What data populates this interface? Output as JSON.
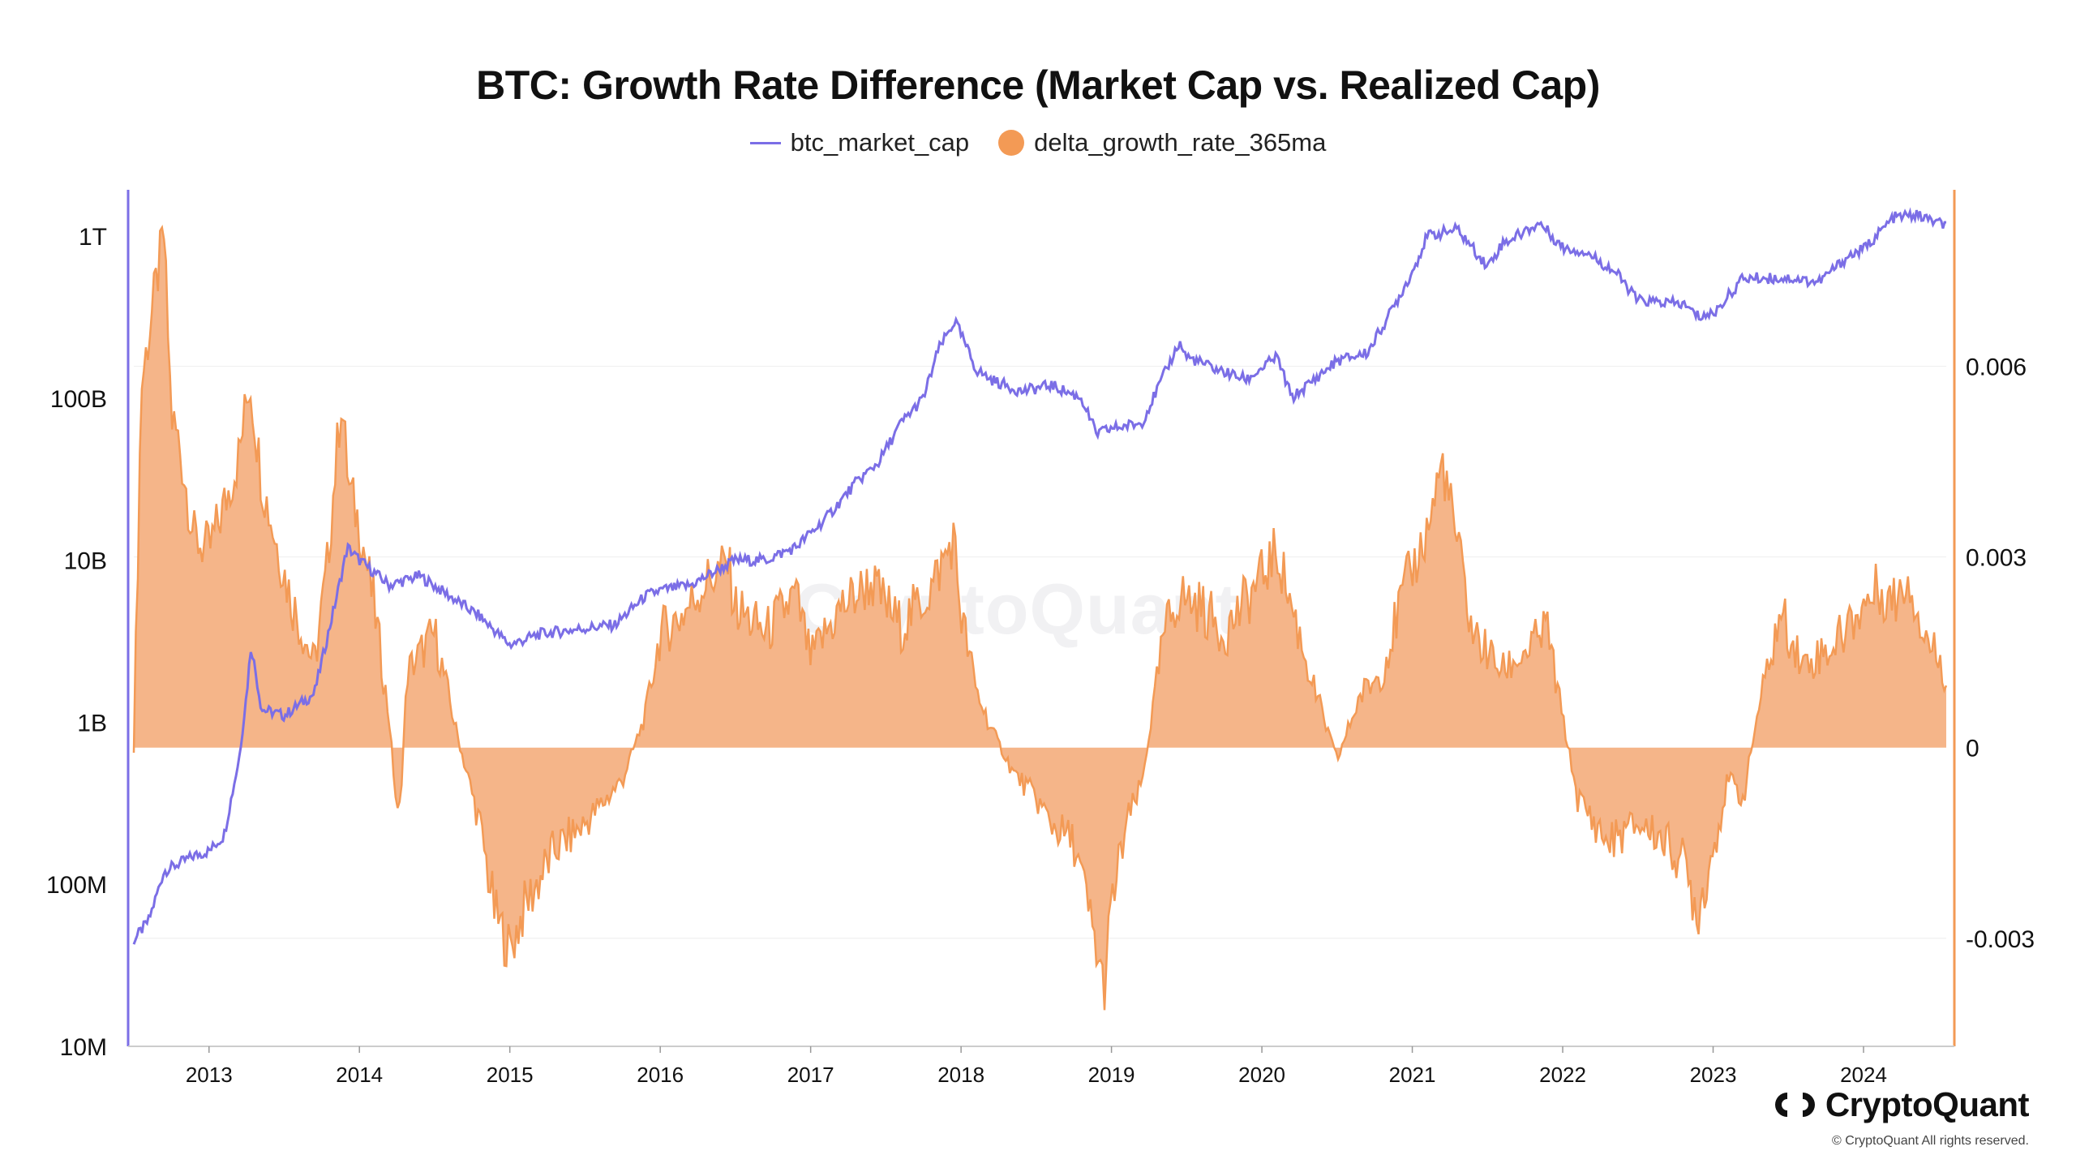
{
  "chart_data": {
    "type": "line+area",
    "title": "BTC: Growth Rate Difference (Market Cap vs. Realized Cap)",
    "legend": [
      "btc_market_cap",
      "delta_growth_rate_365ma"
    ],
    "x_range": [
      2012.5,
      2024.55
    ],
    "x_ticks": [
      "2013",
      "2014",
      "2015",
      "2016",
      "2017",
      "2018",
      "2019",
      "2020",
      "2021",
      "2022",
      "2023",
      "2024"
    ],
    "left_axis": {
      "scale": "log",
      "ticks": [
        {
          "label": "10M",
          "value": 10000000
        },
        {
          "label": "100M",
          "value": 100000000
        },
        {
          "label": "1B",
          "value": 1000000000
        },
        {
          "label": "10B",
          "value": 10000000000
        },
        {
          "label": "100B",
          "value": 100000000000
        },
        {
          "label": "1T",
          "value": 1000000000000
        }
      ],
      "range": [
        10000000,
        1800000000000
      ]
    },
    "right_axis": {
      "scale": "linear",
      "ticks": [
        {
          "label": "-0.003",
          "value": -0.003
        },
        {
          "label": "0",
          "value": 0
        },
        {
          "label": "0.003",
          "value": 0.003
        },
        {
          "label": "0.006",
          "value": 0.006
        }
      ],
      "range": [
        -0.0047,
        0.0087
      ]
    },
    "series": [
      {
        "name": "btc_market_cap",
        "axis": "left",
        "color": "#7b6ee6",
        "x": [
          2012.5,
          2012.6,
          2012.7,
          2012.9,
          2013.0,
          2013.1,
          2013.2,
          2013.25,
          2013.28,
          2013.35,
          2013.5,
          2013.7,
          2013.85,
          2013.92,
          2014.0,
          2014.2,
          2014.4,
          2014.6,
          2014.8,
          2015.0,
          2015.2,
          2015.5,
          2015.7,
          2015.9,
          2016.0,
          2016.2,
          2016.5,
          2016.7,
          2016.9,
          2017.1,
          2017.3,
          2017.45,
          2017.6,
          2017.75,
          2017.85,
          2017.96,
          2018.1,
          2018.2,
          2018.4,
          2018.6,
          2018.8,
          2018.9,
          2019.0,
          2019.2,
          2019.45,
          2019.5,
          2019.7,
          2019.9,
          2020.1,
          2020.2,
          2020.5,
          2020.7,
          2020.85,
          2021.0,
          2021.1,
          2021.3,
          2021.5,
          2021.6,
          2021.85,
          2022.0,
          2022.15,
          2022.35,
          2022.5,
          2022.8,
          2022.9,
          2023.0,
          2023.2,
          2023.5,
          2023.7,
          2023.9,
          2024.0,
          2024.2,
          2024.35,
          2024.5,
          2024.55
        ],
        "values": [
          45000000,
          60000000,
          120000000,
          150000000,
          160000000,
          200000000,
          600000000,
          1500000000,
          3000000000,
          1200000000,
          1100000000,
          1500000000,
          6000000000,
          12000000000,
          10000000000,
          7000000000,
          8000000000,
          6000000000,
          4500000000,
          3000000000,
          3500000000,
          3800000000,
          4000000000,
          6000000000,
          6500000000,
          7000000000,
          10000000000,
          10000000000,
          12000000000,
          18000000000,
          30000000000,
          40000000000,
          70000000000,
          100000000000,
          200000000000,
          300000000000,
          150000000000,
          130000000000,
          110000000000,
          120000000000,
          100000000000,
          60000000000,
          65000000000,
          70000000000,
          220000000000,
          180000000000,
          150000000000,
          130000000000,
          180000000000,
          100000000000,
          170000000000,
          190000000000,
          330000000000,
          600000000000,
          1000000000000,
          1100000000000,
          650000000000,
          900000000000,
          1200000000000,
          850000000000,
          800000000000,
          600000000000,
          400000000000,
          380000000000,
          320000000000,
          330000000000,
          550000000000,
          550000000000,
          520000000000,
          750000000000,
          830000000000,
          1300000000000,
          1350000000000,
          1200000000000,
          1150000000000
        ]
      },
      {
        "name": "delta_growth_rate_365ma",
        "axis": "right",
        "color": "#f39a55",
        "x": [
          2012.5,
          2012.55,
          2012.65,
          2012.7,
          2012.75,
          2012.8,
          2012.9,
          2013.0,
          2013.1,
          2013.2,
          2013.27,
          2013.35,
          2013.45,
          2013.55,
          2013.7,
          2013.78,
          2013.88,
          2013.93,
          2014.0,
          2014.1,
          2014.2,
          2014.26,
          2014.32,
          2014.5,
          2014.65,
          2014.8,
          2014.9,
          2015.0,
          2015.1,
          2015.3,
          2015.5,
          2015.75,
          2015.9,
          2016.0,
          2016.15,
          2016.3,
          2016.45,
          2016.5,
          2016.7,
          2016.9,
          2017.0,
          2017.2,
          2017.4,
          2017.6,
          2017.8,
          2017.95,
          2018.0,
          2018.1,
          2018.2,
          2018.35,
          2018.5,
          2018.6,
          2018.75,
          2018.85,
          2018.95,
          2019.0,
          2019.1,
          2019.2,
          2019.35,
          2019.45,
          2019.6,
          2019.75,
          2019.95,
          2020.1,
          2020.2,
          2020.35,
          2020.5,
          2020.65,
          2020.8,
          2020.95,
          2021.1,
          2021.2,
          2021.3,
          2021.4,
          2021.6,
          2021.8,
          2021.9,
          2021.95,
          2022.1,
          2022.3,
          2022.5,
          2022.65,
          2022.8,
          2022.9,
          2023.0,
          2023.1,
          2023.2,
          2023.3,
          2023.45,
          2023.6,
          2023.8,
          2023.95,
          2024.1,
          2024.2,
          2024.3,
          2024.4,
          2024.5,
          2024.55
        ],
        "values": [
          0.0,
          0.0057,
          0.0073,
          0.0081,
          0.0052,
          0.0048,
          0.0033,
          0.0031,
          0.0038,
          0.0046,
          0.0058,
          0.0042,
          0.0032,
          0.0023,
          0.0013,
          0.0027,
          0.0055,
          0.0041,
          0.0035,
          0.0022,
          0.0004,
          -0.0013,
          0.0012,
          0.0018,
          0.0002,
          -0.0012,
          -0.0026,
          -0.0032,
          -0.0025,
          -0.0016,
          -0.0012,
          -0.0005,
          0.0005,
          0.0018,
          0.0021,
          0.0026,
          0.0029,
          0.0022,
          0.0018,
          0.0024,
          0.0014,
          0.0022,
          0.0026,
          0.0019,
          0.0025,
          0.0033,
          0.0021,
          0.0009,
          0.0003,
          -0.0004,
          -0.0008,
          -0.0012,
          -0.0015,
          -0.0026,
          -0.0038,
          -0.0025,
          -0.0012,
          -0.0006,
          0.0018,
          0.0024,
          0.0022,
          0.0018,
          0.0025,
          0.0031,
          0.0022,
          0.0009,
          -0.0002,
          0.0008,
          0.0012,
          0.0025,
          0.0034,
          0.0045,
          0.0032,
          0.0018,
          0.0012,
          0.0016,
          0.0019,
          0.0011,
          -0.0008,
          -0.0015,
          -0.0012,
          -0.0014,
          -0.0018,
          -0.0026,
          -0.0016,
          -0.0005,
          -0.0008,
          0.0006,
          0.0021,
          0.0013,
          0.0016,
          0.0021,
          0.0025,
          0.0023,
          0.0027,
          0.0018,
          0.0014,
          0.0011
        ]
      }
    ]
  },
  "watermark": "CryptoQuant",
  "brand": {
    "name": "CryptoQuant",
    "copyright": "© CryptoQuant All rights reserved."
  },
  "colors": {
    "market_cap_line": "#7b6ee6",
    "growth_fill": "#f39a55",
    "growth_area": "#f4b183"
  }
}
